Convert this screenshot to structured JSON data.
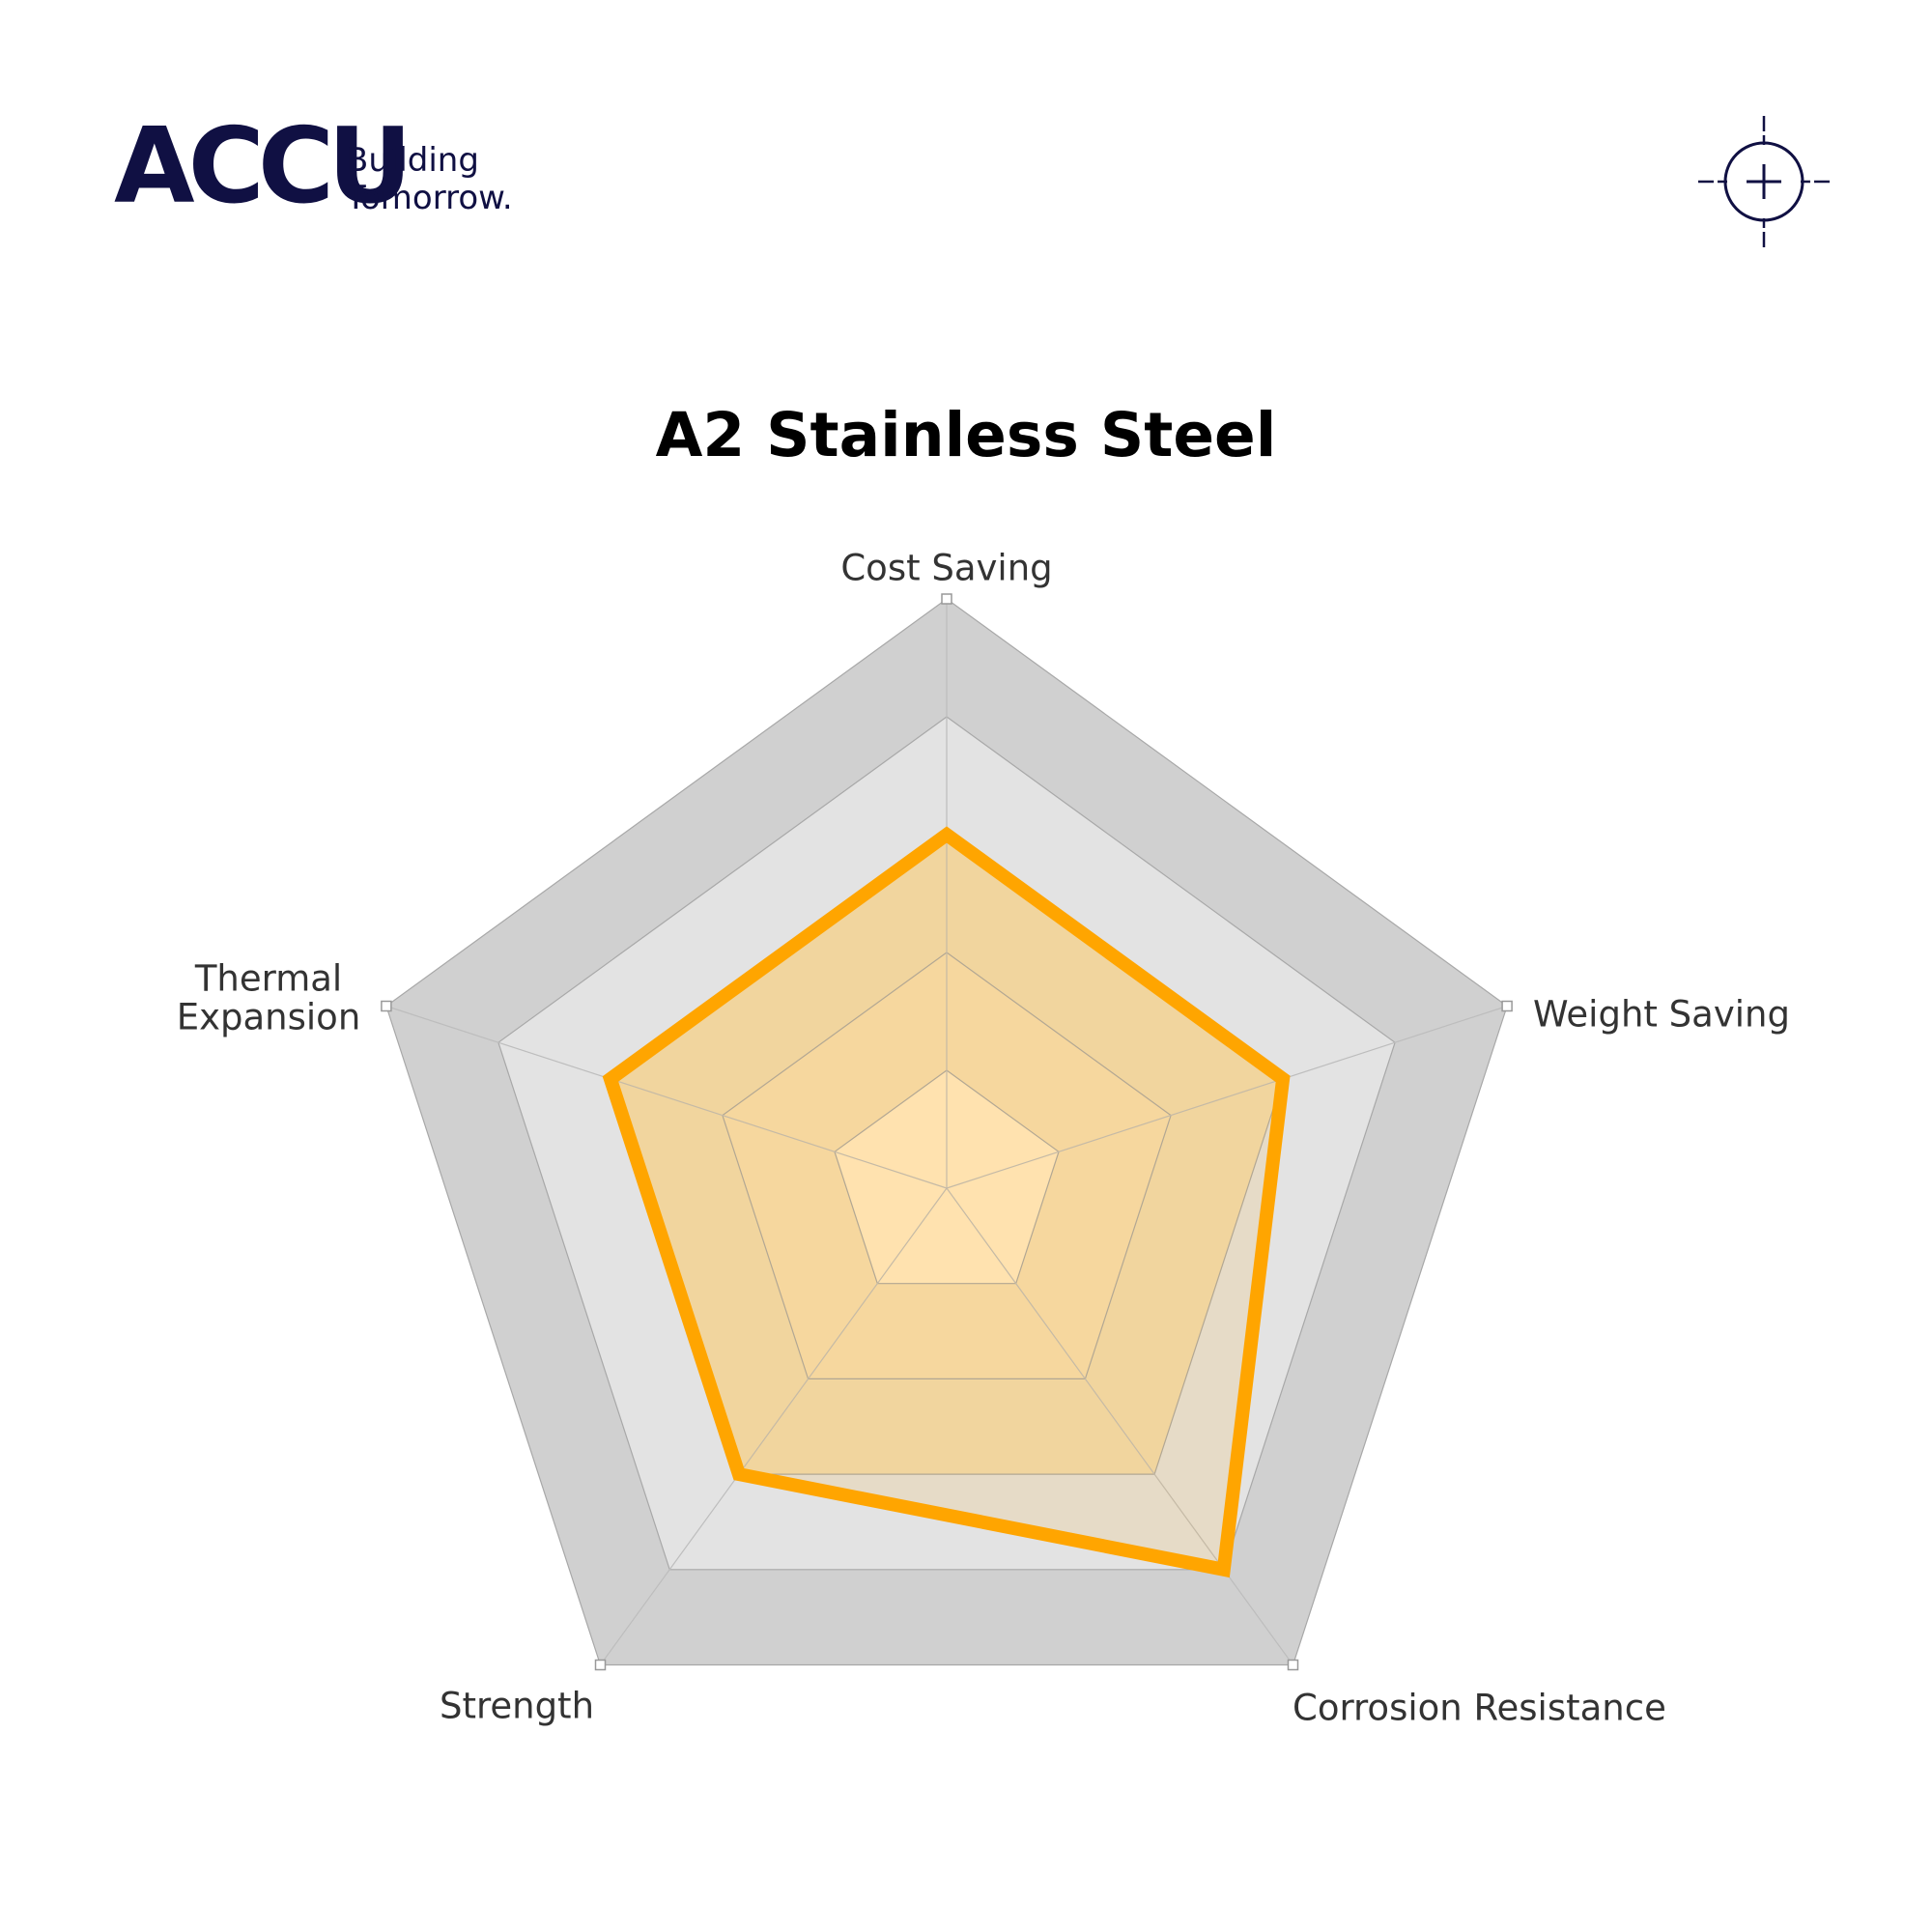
{
  "logo": {
    "wordmark": "ACCU",
    "tagline_line1": "Building",
    "tagline_line2": "Tomorrow.",
    "color": "#101043"
  },
  "crosshair_icon": "crosshair-icon",
  "chart_data": {
    "type": "radar",
    "title": "A2 Stainless Steel",
    "axes": [
      "Cost Saving",
      "Weight Saving",
      "Corrosion Resistance",
      "Strength",
      "Thermal Expansion"
    ],
    "axis_label_lines": [
      [
        "Cost Saving"
      ],
      [
        "Weight Saving"
      ],
      [
        "Corrosion Resistance"
      ],
      [
        "Strength"
      ],
      [
        "Thermal",
        "Expansion"
      ]
    ],
    "range": [
      0,
      5
    ],
    "levels": 5,
    "series": [
      {
        "values": [
          3,
          3,
          4,
          3,
          3
        ],
        "color": "#FFA500"
      }
    ],
    "ring_colors": [
      "#FFEBC8",
      "#F5DEB4",
      "#F0DCB4",
      "#E3E3E3",
      "#D0D0D0"
    ],
    "grid": true
  }
}
